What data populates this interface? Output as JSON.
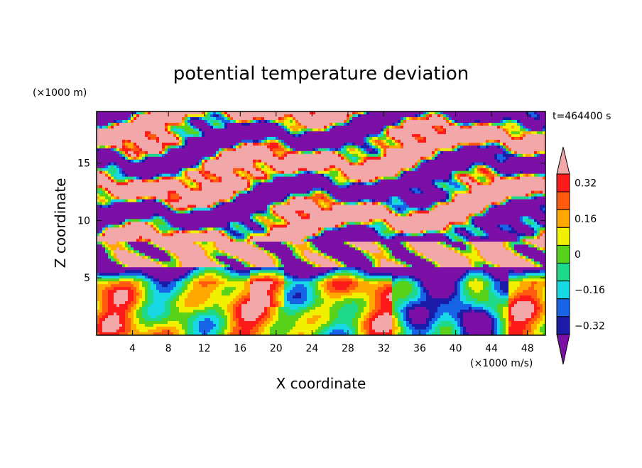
{
  "chart_data": {
    "type": "heatmap",
    "title": "potential temperature deviation",
    "xlabel": "X coordinate",
    "ylabel": "Z coordinate",
    "x_unit": "(×1000 m/s)",
    "y_unit": "(×1000 m)",
    "time_label": "t=464400 s",
    "xlim": [
      0,
      50
    ],
    "ylim": [
      0,
      19.5
    ],
    "x_ticks": [
      "4",
      "8",
      "12",
      "16",
      "20",
      "24",
      "28",
      "32",
      "36",
      "40",
      "44",
      "48"
    ],
    "y_ticks": [
      "5",
      "10",
      "15"
    ],
    "colorbar": {
      "tick_labels": [
        "0.32",
        "0.16",
        "0",
        "−0.16",
        "−0.32"
      ],
      "levels": [
        -0.4,
        -0.32,
        -0.24,
        -0.16,
        -0.08,
        0,
        0.08,
        0.16,
        0.24,
        0.32,
        0.4
      ],
      "colors": [
        "#7b0fa6",
        "#1b1ba8",
        "#1764e6",
        "#18d8e6",
        "#1ed98a",
        "#58d21a",
        "#f0f000",
        "#ffa800",
        "#ff5a10",
        "#ff1a1a",
        "#f2a8a8"
      ]
    }
  }
}
